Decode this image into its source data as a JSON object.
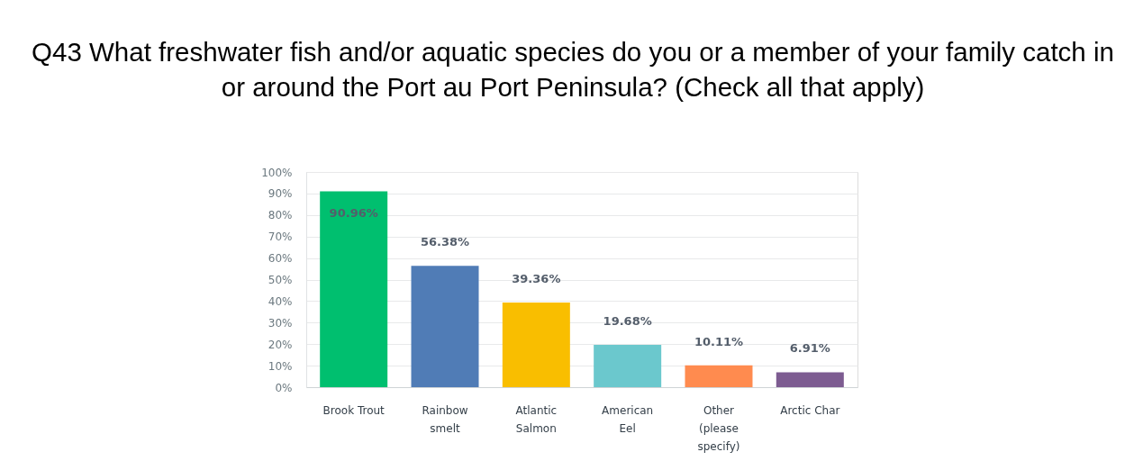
{
  "chart_data": {
    "type": "bar",
    "title": "Q43 What freshwater fish and/or aquatic species do you or a member of your family catch in or around the Port au Port Peninsula? (Check all that apply)",
    "categories": [
      "Brook Trout",
      "Rainbow smelt",
      "Atlantic Salmon",
      "American Eel",
      "Other (please specify)",
      "Arctic Char"
    ],
    "values": [
      90.96,
      56.38,
      39.36,
      19.68,
      10.11,
      6.91
    ],
    "colors": [
      "#00bf6f",
      "#507cb6",
      "#f9be00",
      "#6bc8cd",
      "#ff8b4f",
      "#7d5c91"
    ],
    "value_labels": [
      "90.96%",
      "56.38%",
      "39.36%",
      "19.68%",
      "10.11%",
      "6.91%"
    ],
    "ylim": [
      0,
      100
    ],
    "yticks": [
      {
        "value": 0,
        "label": "0%"
      },
      {
        "value": 10,
        "label": "10%"
      },
      {
        "value": 20,
        "label": "20%"
      },
      {
        "value": 30,
        "label": "30%"
      },
      {
        "value": 40,
        "label": "40%"
      },
      {
        "value": 50,
        "label": "50%"
      },
      {
        "value": 60,
        "label": "60%"
      },
      {
        "value": 70,
        "label": "70%"
      },
      {
        "value": 80,
        "label": "80%"
      },
      {
        "value": 90,
        "label": "90%"
      },
      {
        "value": 100,
        "label": "100%"
      }
    ],
    "grid": "y"
  }
}
